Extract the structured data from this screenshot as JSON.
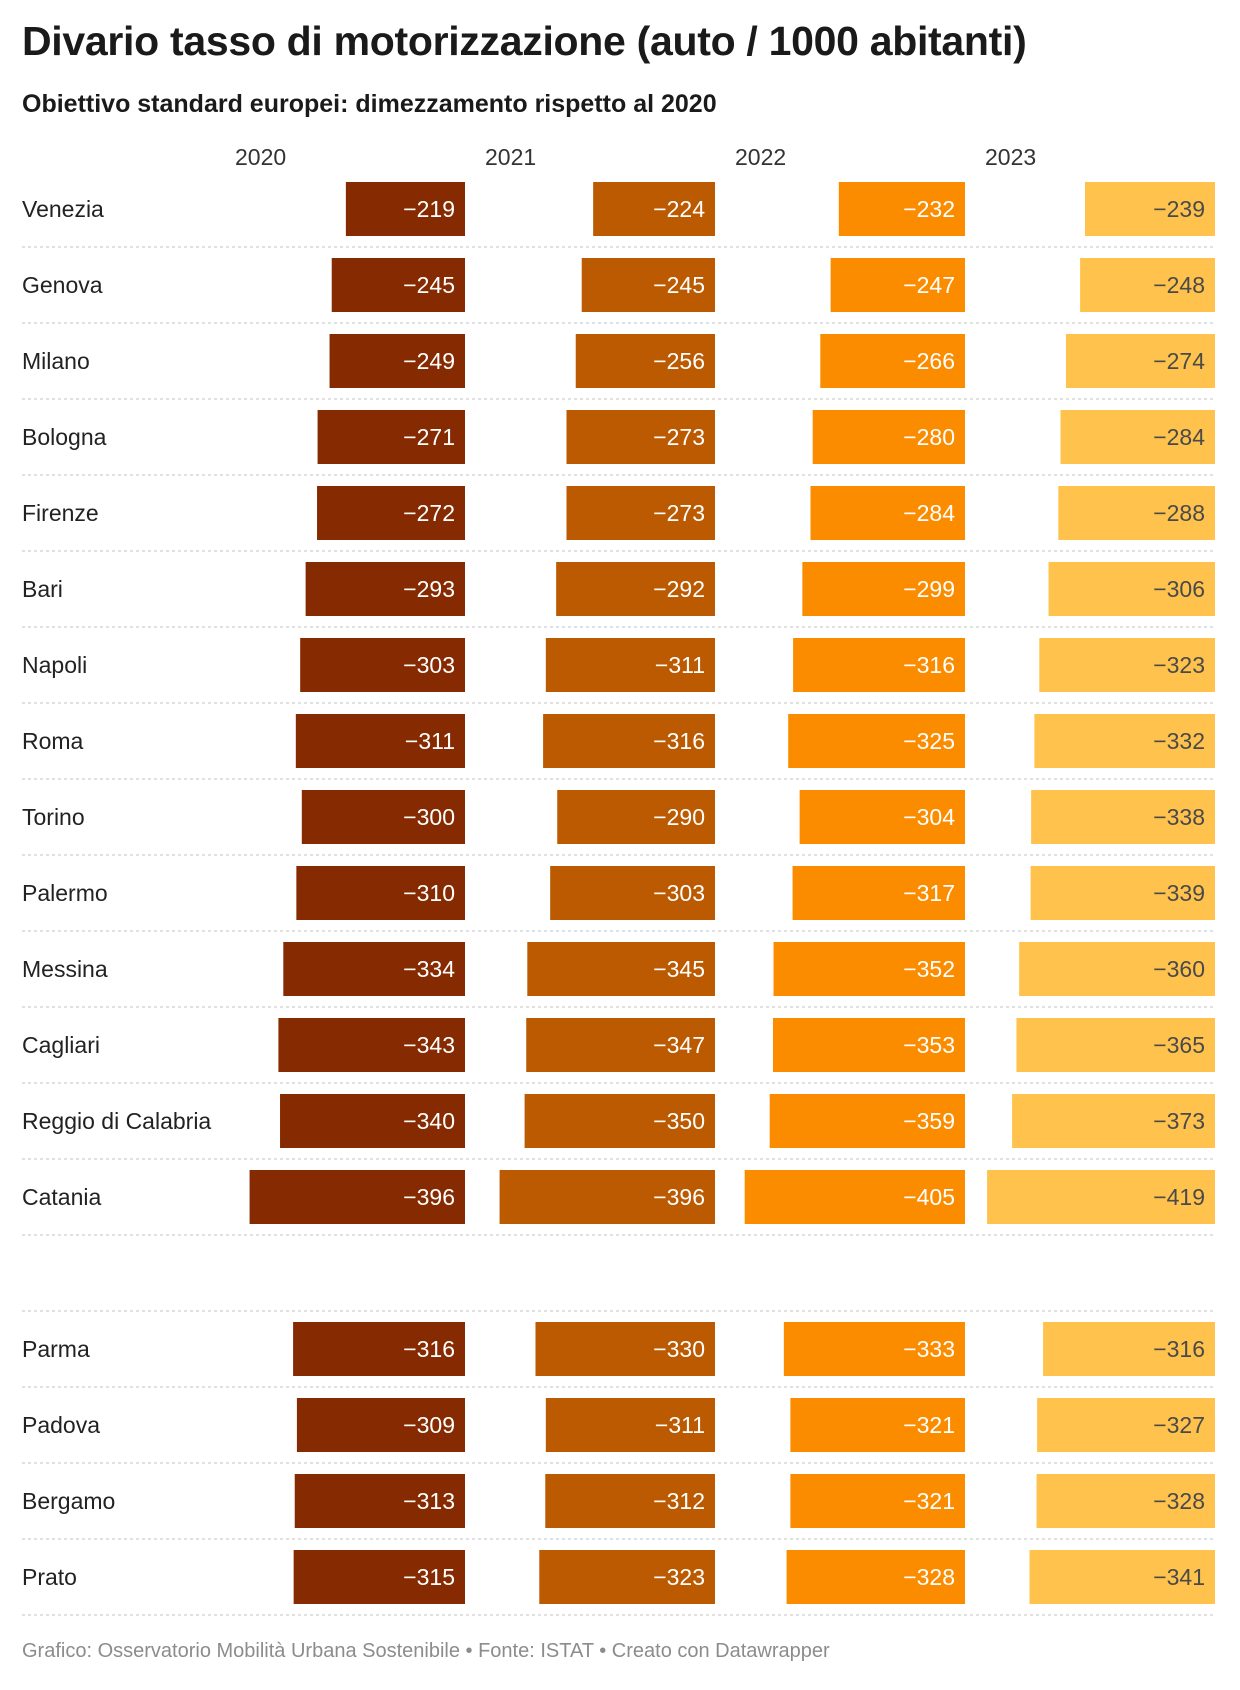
{
  "title": "Divario tasso di motorizzazione (auto / 1000 abitanti)",
  "subtitle": "Obiettivo standard europei: dimezzamento rispetto al 2020",
  "footer": {
    "text": "Grafico: Osservatorio Mobilità Urbana Sostenibile • Fonte: ISTAT • Creato con Datawrapper"
  },
  "chart_data": {
    "type": "bar",
    "orientation": "horizontal",
    "layout": "small multiples, one panel per year",
    "title": "Divario tasso di motorizzazione (auto / 1000 abitanti)",
    "subtitle": "Obiettivo standard europei: dimezzamento rispetto al 2020",
    "value_format": "−{abs}",
    "grid": false,
    "legend": "none",
    "series": [
      {
        "name": "2020",
        "color": "#862a01"
      },
      {
        "name": "2021",
        "color": "#bb5a01"
      },
      {
        "name": "2022",
        "color": "#fb8c00"
      },
      {
        "name": "2023",
        "color": "#ffc24d"
      }
    ],
    "groups": [
      {
        "rows": [
          {
            "category": "Venezia",
            "values": [
              -219,
              -224,
              -232,
              -239
            ]
          },
          {
            "category": "Genova",
            "values": [
              -245,
              -245,
              -247,
              -248
            ]
          },
          {
            "category": "Milano",
            "values": [
              -249,
              -256,
              -266,
              -274
            ]
          },
          {
            "category": "Bologna",
            "values": [
              -271,
              -273,
              -280,
              -284
            ]
          },
          {
            "category": "Firenze",
            "values": [
              -272,
              -273,
              -284,
              -288
            ]
          },
          {
            "category": "Bari",
            "values": [
              -293,
              -292,
              -299,
              -306
            ]
          },
          {
            "category": "Napoli",
            "values": [
              -303,
              -311,
              -316,
              -323
            ]
          },
          {
            "category": "Roma",
            "values": [
              -311,
              -316,
              -325,
              -332
            ]
          },
          {
            "category": "Torino",
            "values": [
              -300,
              -290,
              -304,
              -338
            ]
          },
          {
            "category": "Palermo",
            "values": [
              -310,
              -303,
              -317,
              -339
            ]
          },
          {
            "category": "Messina",
            "values": [
              -334,
              -345,
              -352,
              -360
            ]
          },
          {
            "category": "Cagliari",
            "values": [
              -343,
              -347,
              -353,
              -365
            ]
          },
          {
            "category": "Reggio di Calabria",
            "values": [
              -340,
              -350,
              -359,
              -373
            ]
          },
          {
            "category": "Catania",
            "values": [
              -396,
              -396,
              -405,
              -419
            ]
          }
        ]
      },
      {
        "rows": [
          {
            "category": "Parma",
            "values": [
              -316,
              -330,
              -333,
              -316
            ]
          },
          {
            "category": "Padova",
            "values": [
              -309,
              -311,
              -321,
              -327
            ]
          },
          {
            "category": "Bergamo",
            "values": [
              -313,
              -312,
              -321,
              -328
            ]
          },
          {
            "category": "Prato",
            "values": [
              -315,
              -323,
              -328,
              -341
            ]
          }
        ]
      }
    ]
  }
}
